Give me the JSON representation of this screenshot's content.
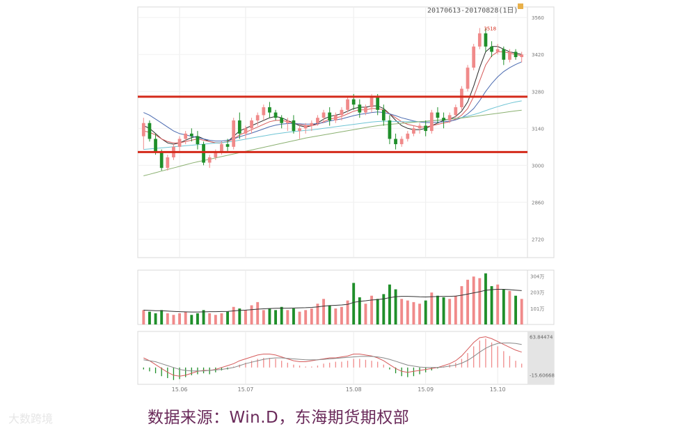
{
  "header": {
    "range_text": "20170613-20170828(1日)"
  },
  "caption": "数据来源：Win.D，东海期货期权部",
  "watermark": "大数跨境",
  "colors": {
    "up": "#f08a8a",
    "down": "#1f8f2a",
    "support_line": "#d42a1a",
    "ma_dark": "#2a2a2a",
    "ma_red": "#d65a5a",
    "ma_blue": "#4a6ab0",
    "ma_cyan": "#6ec4d4",
    "ma_green": "#8ab070",
    "macd_panel": "#e4e4e4"
  },
  "chart_data": {
    "type": "candlestick",
    "x_ticks": [
      "15.06",
      "15.07",
      "15.08",
      "15.09",
      "15.10"
    ],
    "y_ticks": [
      2720,
      2860,
      3000,
      3140,
      3280,
      3420,
      3560
    ],
    "ylim": [
      2650,
      3600
    ],
    "peak_label": "3518",
    "resistance": 3260,
    "support": 3050,
    "candles": [
      [
        3110,
        3180,
        3060,
        3160
      ],
      [
        3160,
        3170,
        3090,
        3100
      ],
      [
        3100,
        3120,
        3040,
        3050
      ],
      [
        3050,
        3060,
        2980,
        2990
      ],
      [
        2990,
        3040,
        2980,
        3030
      ],
      [
        3030,
        3080,
        3020,
        3070
      ],
      [
        3070,
        3110,
        3050,
        3100
      ],
      [
        3100,
        3130,
        3080,
        3120
      ],
      [
        3120,
        3140,
        3090,
        3110
      ],
      [
        3110,
        3130,
        3060,
        3080
      ],
      [
        3080,
        3090,
        3000,
        3010
      ],
      [
        3010,
        3040,
        2990,
        3030
      ],
      [
        3030,
        3060,
        3020,
        3050
      ],
      [
        3050,
        3090,
        3040,
        3080
      ],
      [
        3080,
        3100,
        3050,
        3070
      ],
      [
        3070,
        3180,
        3060,
        3170
      ],
      [
        3170,
        3200,
        3100,
        3120
      ],
      [
        3120,
        3150,
        3100,
        3140
      ],
      [
        3140,
        3180,
        3120,
        3170
      ],
      [
        3170,
        3200,
        3150,
        3190
      ],
      [
        3190,
        3230,
        3170,
        3220
      ],
      [
        3220,
        3240,
        3180,
        3200
      ],
      [
        3200,
        3210,
        3170,
        3180
      ],
      [
        3180,
        3190,
        3140,
        3160
      ],
      [
        3160,
        3180,
        3130,
        3170
      ],
      [
        3170,
        3190,
        3120,
        3130
      ],
      [
        3130,
        3150,
        3100,
        3140
      ],
      [
        3140,
        3160,
        3120,
        3150
      ],
      [
        3150,
        3170,
        3130,
        3160
      ],
      [
        3160,
        3190,
        3150,
        3180
      ],
      [
        3180,
        3210,
        3160,
        3200
      ],
      [
        3200,
        3220,
        3150,
        3170
      ],
      [
        3170,
        3200,
        3160,
        3190
      ],
      [
        3190,
        3220,
        3170,
        3210
      ],
      [
        3210,
        3260,
        3200,
        3250
      ],
      [
        3250,
        3270,
        3210,
        3230
      ],
      [
        3230,
        3250,
        3180,
        3200
      ],
      [
        3200,
        3230,
        3190,
        3220
      ],
      [
        3220,
        3270,
        3200,
        3260
      ],
      [
        3260,
        3270,
        3190,
        3210
      ],
      [
        3210,
        3230,
        3150,
        3170
      ],
      [
        3170,
        3190,
        3080,
        3100
      ],
      [
        3100,
        3120,
        3060,
        3080
      ],
      [
        3080,
        3110,
        3070,
        3100
      ],
      [
        3100,
        3130,
        3090,
        3120
      ],
      [
        3120,
        3150,
        3110,
        3140
      ],
      [
        3140,
        3160,
        3120,
        3150
      ],
      [
        3150,
        3170,
        3110,
        3130
      ],
      [
        3130,
        3210,
        3120,
        3200
      ],
      [
        3200,
        3220,
        3160,
        3180
      ],
      [
        3180,
        3200,
        3140,
        3170
      ],
      [
        3170,
        3200,
        3160,
        3190
      ],
      [
        3190,
        3230,
        3180,
        3220
      ],
      [
        3220,
        3300,
        3210,
        3290
      ],
      [
        3290,
        3380,
        3280,
        3370
      ],
      [
        3370,
        3460,
        3360,
        3450
      ],
      [
        3450,
        3520,
        3440,
        3500
      ],
      [
        3500,
        3518,
        3430,
        3450
      ],
      [
        3450,
        3470,
        3410,
        3430
      ],
      [
        3430,
        3460,
        3420,
        3440
      ],
      [
        3440,
        3450,
        3380,
        3400
      ],
      [
        3400,
        3440,
        3390,
        3430
      ],
      [
        3430,
        3440,
        3400,
        3410
      ],
      [
        3410,
        3430,
        3390,
        3420
      ]
    ],
    "ma": {
      "ma_dark": [
        3150,
        3140,
        3120,
        3100,
        3085,
        3080,
        3085,
        3095,
        3105,
        3110,
        3100,
        3090,
        3085,
        3085,
        3090,
        3110,
        3130,
        3140,
        3150,
        3160,
        3170,
        3180,
        3185,
        3180,
        3170,
        3160,
        3150,
        3145,
        3150,
        3160,
        3175,
        3185,
        3190,
        3195,
        3205,
        3215,
        3220,
        3220,
        3225,
        3225,
        3215,
        3195,
        3170,
        3150,
        3140,
        3135,
        3135,
        3140,
        3150,
        3160,
        3170,
        3175,
        3185,
        3205,
        3240,
        3300,
        3370,
        3430,
        3450,
        3450,
        3440,
        3430,
        3425,
        3420
      ],
      "ma_red": [
        3130,
        3125,
        3115,
        3100,
        3090,
        3085,
        3085,
        3090,
        3095,
        3100,
        3095,
        3090,
        3085,
        3085,
        3090,
        3100,
        3115,
        3125,
        3135,
        3145,
        3155,
        3165,
        3170,
        3170,
        3165,
        3160,
        3155,
        3150,
        3150,
        3155,
        3165,
        3175,
        3180,
        3185,
        3195,
        3205,
        3210,
        3210,
        3215,
        3215,
        3210,
        3195,
        3180,
        3165,
        3155,
        3150,
        3145,
        3145,
        3150,
        3155,
        3160,
        3165,
        3175,
        3190,
        3215,
        3260,
        3320,
        3380,
        3415,
        3430,
        3430,
        3425,
        3420,
        3415
      ],
      "ma_blue": [
        3200,
        3190,
        3175,
        3160,
        3145,
        3130,
        3120,
        3115,
        3110,
        3105,
        3100,
        3095,
        3092,
        3092,
        3095,
        3100,
        3108,
        3115,
        3122,
        3130,
        3138,
        3146,
        3152,
        3156,
        3158,
        3158,
        3157,
        3156,
        3156,
        3158,
        3162,
        3168,
        3172,
        3176,
        3182,
        3188,
        3193,
        3196,
        3200,
        3202,
        3200,
        3195,
        3188,
        3180,
        3174,
        3168,
        3164,
        3162,
        3162,
        3163,
        3165,
        3167,
        3172,
        3180,
        3195,
        3215,
        3245,
        3280,
        3310,
        3335,
        3355,
        3370,
        3382,
        3392
      ],
      "ma_cyan": [
        3060,
        3062,
        3064,
        3066,
        3068,
        3070,
        3072,
        3074,
        3076,
        3078,
        3080,
        3082,
        3084,
        3086,
        3088,
        3091,
        3095,
        3099,
        3103,
        3107,
        3111,
        3115,
        3119,
        3122,
        3125,
        3128,
        3130,
        3132,
        3134,
        3137,
        3140,
        3143,
        3146,
        3149,
        3152,
        3155,
        3158,
        3161,
        3164,
        3166,
        3167,
        3167,
        3166,
        3165,
        3165,
        3165,
        3165,
        3166,
        3168,
        3170,
        3172,
        3174,
        3177,
        3181,
        3186,
        3192,
        3199,
        3207,
        3215,
        3222,
        3229,
        3235,
        3240,
        3244
      ],
      "ma_green": [
        2960,
        2966,
        2972,
        2978,
        2984,
        2990,
        2996,
        3002,
        3008,
        3013,
        3018,
        3023,
        3028,
        3033,
        3038,
        3043,
        3048,
        3053,
        3058,
        3063,
        3068,
        3073,
        3078,
        3083,
        3088,
        3093,
        3098,
        3103,
        3107,
        3111,
        3115,
        3119,
        3123,
        3127,
        3131,
        3135,
        3139,
        3143,
        3147,
        3150,
        3153,
        3155,
        3157,
        3159,
        3161,
        3163,
        3165,
        3167,
        3169,
        3171,
        3173,
        3175,
        3177,
        3179,
        3182,
        3185,
        3188,
        3191,
        3194,
        3197,
        3200,
        3203,
        3206,
        3209
      ]
    },
    "volume": {
      "y_ticks": [
        "304万",
        "203万",
        "101万"
      ],
      "ylim": [
        0,
        3400000
      ],
      "values": [
        900000,
        800000,
        700000,
        900000,
        700000,
        600000,
        700000,
        800000,
        600000,
        700000,
        900000,
        700000,
        600000,
        700000,
        800000,
        1100000,
        1000000,
        900000,
        1200000,
        1400000,
        900000,
        1000000,
        900000,
        1100000,
        900000,
        1000000,
        800000,
        900000,
        1000000,
        1300000,
        1600000,
        1200000,
        1000000,
        1100000,
        1500000,
        2600000,
        1700000,
        1300000,
        1800000,
        1600000,
        1900000,
        2500000,
        2200000,
        1600000,
        1500000,
        1400000,
        1300000,
        1500000,
        2000000,
        1800000,
        1700000,
        1600000,
        1800000,
        2400000,
        2800000,
        3000000,
        2900000,
        3200000,
        2400000,
        2500000,
        2200000,
        2100000,
        1800000,
        1600000
      ],
      "ma": [
        900000,
        880000,
        860000,
        860000,
        840000,
        820000,
        800000,
        790000,
        780000,
        780000,
        790000,
        800000,
        800000,
        810000,
        820000,
        850000,
        880000,
        900000,
        930000,
        960000,
        980000,
        1000000,
        1010000,
        1020000,
        1020000,
        1030000,
        1040000,
        1050000,
        1070000,
        1100000,
        1150000,
        1180000,
        1200000,
        1220000,
        1260000,
        1380000,
        1450000,
        1480000,
        1530000,
        1560000,
        1600000,
        1680000,
        1740000,
        1760000,
        1760000,
        1750000,
        1730000,
        1720000,
        1740000,
        1750000,
        1760000,
        1760000,
        1780000,
        1830000,
        1900000,
        1980000,
        2050000,
        2140000,
        2180000,
        2200000,
        2200000,
        2180000,
        2150000,
        2120000
      ]
    },
    "macd": {
      "y_ticks": [
        "63.84474",
        "-15.60668"
      ],
      "ylim": [
        -35,
        75
      ],
      "hist": [
        -4,
        -8,
        -12,
        -18,
        -22,
        -26,
        -24,
        -20,
        -16,
        -14,
        -12,
        -14,
        -10,
        -6,
        -4,
        2,
        6,
        10,
        14,
        18,
        20,
        20,
        18,
        14,
        10,
        6,
        4,
        2,
        2,
        4,
        8,
        10,
        12,
        12,
        14,
        18,
        18,
        16,
        14,
        12,
        6,
        -4,
        -12,
        -18,
        -20,
        -18,
        -14,
        -10,
        -6,
        -2,
        2,
        6,
        10,
        18,
        30,
        44,
        56,
        60,
        52,
        44,
        34,
        24,
        14,
        8
      ],
      "dif": [
        20,
        14,
        6,
        -2,
        -10,
        -16,
        -18,
        -16,
        -12,
        -8,
        -6,
        -6,
        -4,
        0,
        4,
        8,
        14,
        18,
        22,
        26,
        28,
        28,
        26,
        22,
        18,
        14,
        12,
        12,
        14,
        16,
        18,
        20,
        20,
        22,
        24,
        28,
        28,
        26,
        24,
        20,
        14,
        6,
        -2,
        -8,
        -10,
        -8,
        -6,
        -4,
        -2,
        0,
        4,
        8,
        14,
        24,
        38,
        52,
        62,
        64,
        60,
        54,
        48,
        42,
        36,
        32
      ],
      "dea": [
        16,
        14,
        12,
        8,
        4,
        0,
        -4,
        -6,
        -7,
        -7,
        -7,
        -6,
        -5,
        -4,
        -2,
        0,
        4,
        8,
        11,
        14,
        17,
        19,
        20,
        20,
        19,
        18,
        17,
        16,
        16,
        16,
        17,
        18,
        19,
        20,
        21,
        22,
        23,
        23,
        23,
        22,
        20,
        17,
        13,
        9,
        5,
        3,
        1,
        0,
        0,
        0,
        1,
        3,
        5,
        9,
        15,
        23,
        32,
        40,
        46,
        50,
        51,
        51,
        50,
        48
      ]
    }
  }
}
